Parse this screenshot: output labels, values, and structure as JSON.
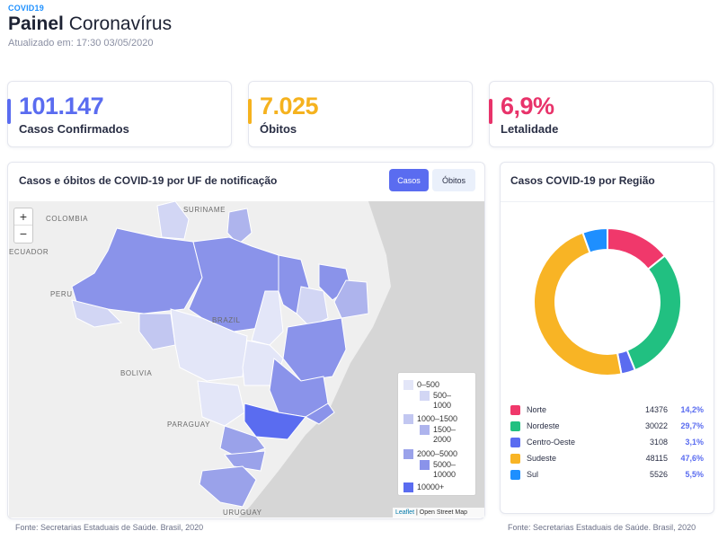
{
  "header": {
    "brand": "COVID19",
    "title_bold": "Painel",
    "title_rest": "Coronavírus",
    "updated": "Atualizado em: 17:30 03/05/2020"
  },
  "kpis": [
    {
      "value": "101.147",
      "label": "Casos Confirmados",
      "color": "#5a6cf0"
    },
    {
      "value": "7.025",
      "label": "Óbitos",
      "color": "#f5b21e"
    },
    {
      "value": "6,9%",
      "label": "Letalidade",
      "color": "#e8336a"
    }
  ],
  "map_panel": {
    "title": "Casos e óbitos de COVID-19 por UF de notificação",
    "toggle": {
      "cases": "Casos",
      "deaths": "Óbitos",
      "active": "cases"
    },
    "zoom_in": "+",
    "zoom_out": "−",
    "labels": {
      "colombia": "COLOMBIA",
      "suriname": "SURINAME",
      "ecuador": "ECUADOR",
      "peru": "PERU",
      "brazil": "BRAZIL",
      "bolivia": "BOLIVIA",
      "paraguay": "PARAGUAY",
      "uruguay": "URUGUAY"
    },
    "legend": [
      {
        "label": "0–500",
        "color": "#e3e6f8"
      },
      {
        "label": "500–\n1000",
        "color": "#d2d6f4"
      },
      {
        "label": "1000–1500",
        "color": "#c2c7f1"
      },
      {
        "label": "1500–\n2000",
        "color": "#aeb4ed"
      },
      {
        "label": "2000–5000",
        "color": "#9aa2ea"
      },
      {
        "label": "5000–\n10000",
        "color": "#8a93ea"
      },
      {
        "label": "10000+",
        "color": "#5a6cf0"
      }
    ],
    "attribution_leaflet": "Leaflet",
    "attribution_osm": "| Open Street Map",
    "source": "Fonte: Secretarias Estaduais de Saúde. Brasil, 2020"
  },
  "region_panel": {
    "title": "Casos COVID-19 por Região",
    "source": "Fonte: Secretarias Estaduais de Saúde. Brasil, 2020"
  },
  "chart_data": {
    "type": "pie",
    "title": "Casos COVID-19 por Região",
    "categories": [
      "Norte",
      "Nordeste",
      "Centro-Oeste",
      "Sudeste",
      "Sul"
    ],
    "values": [
      14376,
      30022,
      3108,
      48115,
      5526
    ],
    "percent_labels": [
      "14,2%",
      "29,7%",
      "3,1%",
      "47,6%",
      "5,5%"
    ],
    "value_labels": [
      "14376",
      "30022",
      "3108",
      "48115",
      "5526"
    ],
    "colors": [
      "#f0386b",
      "#21c081",
      "#5a6cf0",
      "#f8b425",
      "#1e8fff"
    ],
    "donut": true,
    "legend": "bottom"
  }
}
